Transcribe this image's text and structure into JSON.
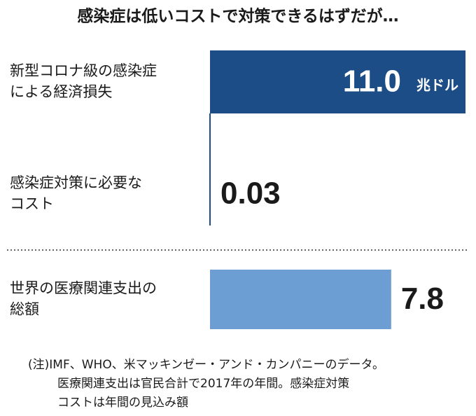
{
  "chart_data": {
    "type": "bar",
    "orientation": "horizontal",
    "title": "感染症は低いコストで対策できるはずだが…",
    "categories": [
      [
        "新型コロナ級の感染症",
        "による経済損失"
      ],
      [
        "感染症対策に必要な",
        "コスト"
      ],
      [
        "世界の医療関連支出の",
        "総額"
      ]
    ],
    "values": [
      11.0,
      0.03,
      7.8
    ],
    "value_labels": [
      "11.0",
      "0.03",
      "7.8"
    ],
    "unit": "兆ドル",
    "colors": [
      "#1c4d86",
      "#1c4d86",
      "#6c9dd3"
    ],
    "xlim": [
      0,
      11
    ],
    "note": [
      "(注)IMF、WHO、米マッキンゼー・アンド・カンパニーのデータ。",
      "医療関連支出は官民合計で2017年の年間。感染症対策",
      "コストは年間の見込み額"
    ]
  }
}
